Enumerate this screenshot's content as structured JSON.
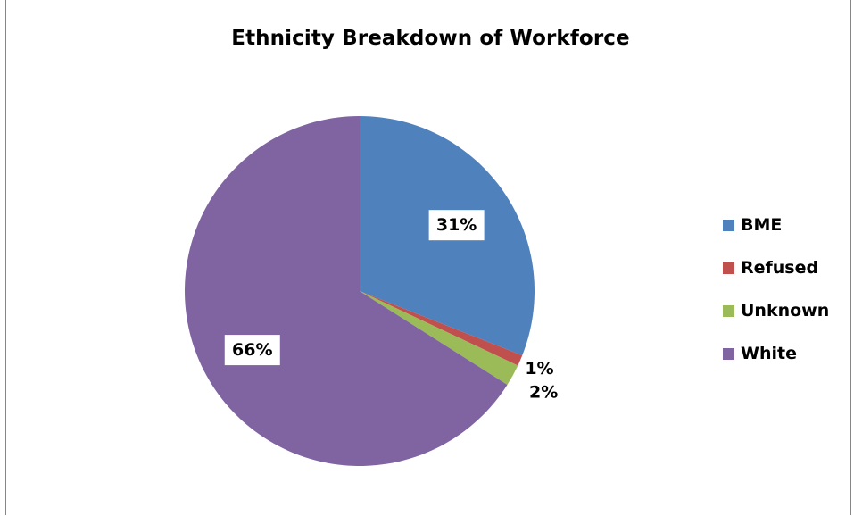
{
  "chart_data": {
    "type": "pie",
    "title": "Ethnicity Breakdown of Workforce",
    "categories": [
      "BME",
      "Refused",
      "Unknown",
      "White"
    ],
    "values": [
      31,
      1,
      2,
      66
    ],
    "labels": [
      "31%",
      "1%",
      "2%",
      "66%"
    ],
    "colors": [
      "#4F81BD",
      "#C0504D",
      "#9BBB59",
      "#8064A2"
    ],
    "legend": "right"
  }
}
